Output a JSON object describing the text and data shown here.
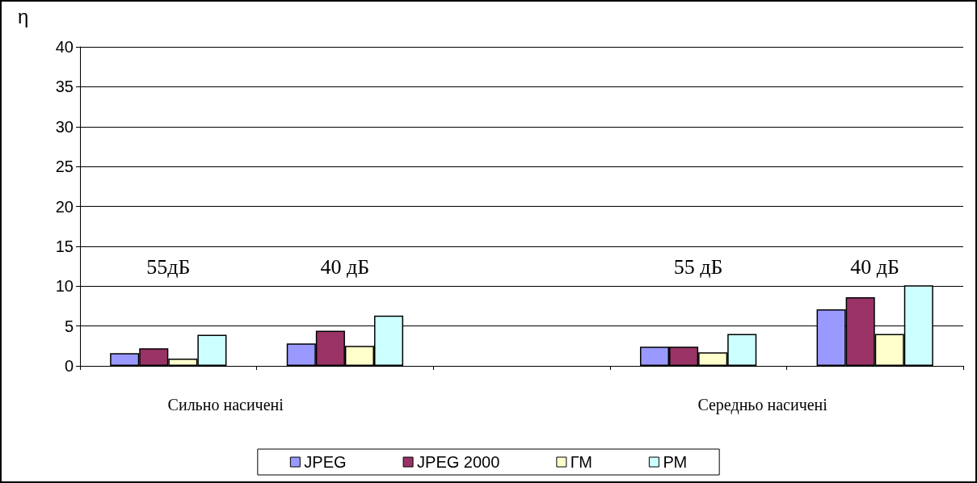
{
  "chart_data": {
    "type": "bar",
    "ylabel": "η",
    "categories": [
      "55дБ",
      "40 дБ",
      null,
      "55 дБ",
      "40 дБ"
    ],
    "series": [
      {
        "name": "JPEG",
        "color": "#9999ff",
        "values": [
          1.6,
          2.8,
          null,
          2.4,
          7.1
        ]
      },
      {
        "name": "JPEG 2000",
        "color": "#993366",
        "values": [
          2.2,
          4.4,
          null,
          2.4,
          8.6
        ]
      },
      {
        "name": "ГМ",
        "color": "#ffffcc",
        "values": [
          0.9,
          2.5,
          null,
          1.7,
          4.0
        ]
      },
      {
        "name": "РМ",
        "color": "#ccffff",
        "values": [
          3.9,
          6.3,
          null,
          4.0,
          10.1
        ]
      }
    ],
    "annotations": [
      "Сильно насичені",
      "Середньо насичені"
    ],
    "ylim": [
      0,
      40
    ],
    "yticks": [
      0,
      5,
      10,
      15,
      20,
      25,
      30,
      35,
      40
    ],
    "grid": "y",
    "legend": "bottom"
  }
}
